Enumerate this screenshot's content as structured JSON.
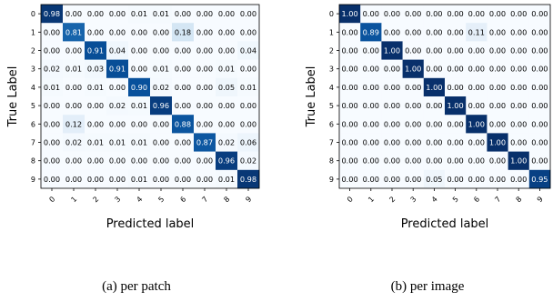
{
  "chart_data": [
    {
      "type": "heatmap",
      "caption": "(a) per patch",
      "xlabel": "Predicted label",
      "ylabel": "True Label",
      "x_tick_labels": [
        "0",
        "1",
        "2",
        "3",
        "4",
        "5",
        "6",
        "7",
        "8",
        "9"
      ],
      "y_tick_labels": [
        "0",
        "1",
        "2",
        "3",
        "4",
        "5",
        "6",
        "7",
        "8",
        "9"
      ],
      "colormap": "blues",
      "value_range": [
        0,
        1
      ],
      "matrix": [
        [
          "0.98",
          "0.00",
          "0.00",
          "0.00",
          "0.01",
          "0.01",
          "0.00",
          "0.00",
          "0.00",
          "0.00"
        ],
        [
          "0.00",
          "0.81",
          "0.00",
          "0.00",
          "0.00",
          "0.00",
          "0.18",
          "0.00",
          "0.00",
          "0.00"
        ],
        [
          "0.00",
          "0.00",
          "0.91",
          "0.04",
          "0.00",
          "0.00",
          "0.00",
          "0.00",
          "0.00",
          "0.04"
        ],
        [
          "0.02",
          "0.01",
          "0.03",
          "0.91",
          "0.00",
          "0.01",
          "0.00",
          "0.00",
          "0.01",
          "0.00"
        ],
        [
          "0.01",
          "0.00",
          "0.01",
          "0.00",
          "0.90",
          "0.02",
          "0.00",
          "0.00",
          "0.05",
          "0.01"
        ],
        [
          "0.00",
          "0.00",
          "0.00",
          "0.02",
          "0.01",
          "0.96",
          "0.00",
          "0.00",
          "0.00",
          "0.00"
        ],
        [
          "0.00",
          "0.12",
          "0.00",
          "0.00",
          "0.00",
          "0.00",
          "0.88",
          "0.00",
          "0.00",
          "0.00"
        ],
        [
          "0.00",
          "0.02",
          "0.01",
          "0.01",
          "0.01",
          "0.00",
          "0.00",
          "0.87",
          "0.02",
          "0.06"
        ],
        [
          "0.00",
          "0.00",
          "0.00",
          "0.00",
          "0.00",
          "0.00",
          "0.00",
          "0.00",
          "0.96",
          "0.02"
        ],
        [
          "0.00",
          "0.00",
          "0.00",
          "0.00",
          "0.01",
          "0.00",
          "0.00",
          "0.00",
          "0.01",
          "0.98"
        ]
      ]
    },
    {
      "type": "heatmap",
      "caption": "(b) per image",
      "xlabel": "Predicted label",
      "ylabel": "True Label",
      "x_tick_labels": [
        "0",
        "1",
        "2",
        "3",
        "4",
        "5",
        "6",
        "7",
        "8",
        "9"
      ],
      "y_tick_labels": [
        "0",
        "1",
        "2",
        "3",
        "4",
        "5",
        "6",
        "7",
        "8",
        "9"
      ],
      "colormap": "blues",
      "value_range": [
        0,
        1
      ],
      "matrix": [
        [
          "1.00",
          "0.00",
          "0.00",
          "0.00",
          "0.00",
          "0.00",
          "0.00",
          "0.00",
          "0.00",
          "0.00"
        ],
        [
          "0.00",
          "0.89",
          "0.00",
          "0.00",
          "0.00",
          "0.00",
          "0.11",
          "0.00",
          "0.00",
          "0.00"
        ],
        [
          "0.00",
          "0.00",
          "1.00",
          "0.00",
          "0.00",
          "0.00",
          "0.00",
          "0.00",
          "0.00",
          "0.00"
        ],
        [
          "0.00",
          "0.00",
          "0.00",
          "1.00",
          "0.00",
          "0.00",
          "0.00",
          "0.00",
          "0.00",
          "0.00"
        ],
        [
          "0.00",
          "0.00",
          "0.00",
          "0.00",
          "1.00",
          "0.00",
          "0.00",
          "0.00",
          "0.00",
          "0.00"
        ],
        [
          "0.00",
          "0.00",
          "0.00",
          "0.00",
          "0.00",
          "1.00",
          "0.00",
          "0.00",
          "0.00",
          "0.00"
        ],
        [
          "0.00",
          "0.00",
          "0.00",
          "0.00",
          "0.00",
          "0.00",
          "1.00",
          "0.00",
          "0.00",
          "0.00"
        ],
        [
          "0.00",
          "0.00",
          "0.00",
          "0.00",
          "0.00",
          "0.00",
          "0.00",
          "1.00",
          "0.00",
          "0.00"
        ],
        [
          "0.00",
          "0.00",
          "0.00",
          "0.00",
          "0.00",
          "0.00",
          "0.00",
          "0.00",
          "1.00",
          "0.00"
        ],
        [
          "0.00",
          "0.00",
          "0.00",
          "0.00",
          "0.05",
          "0.00",
          "0.00",
          "0.00",
          "0.00",
          "0.95"
        ]
      ]
    }
  ]
}
